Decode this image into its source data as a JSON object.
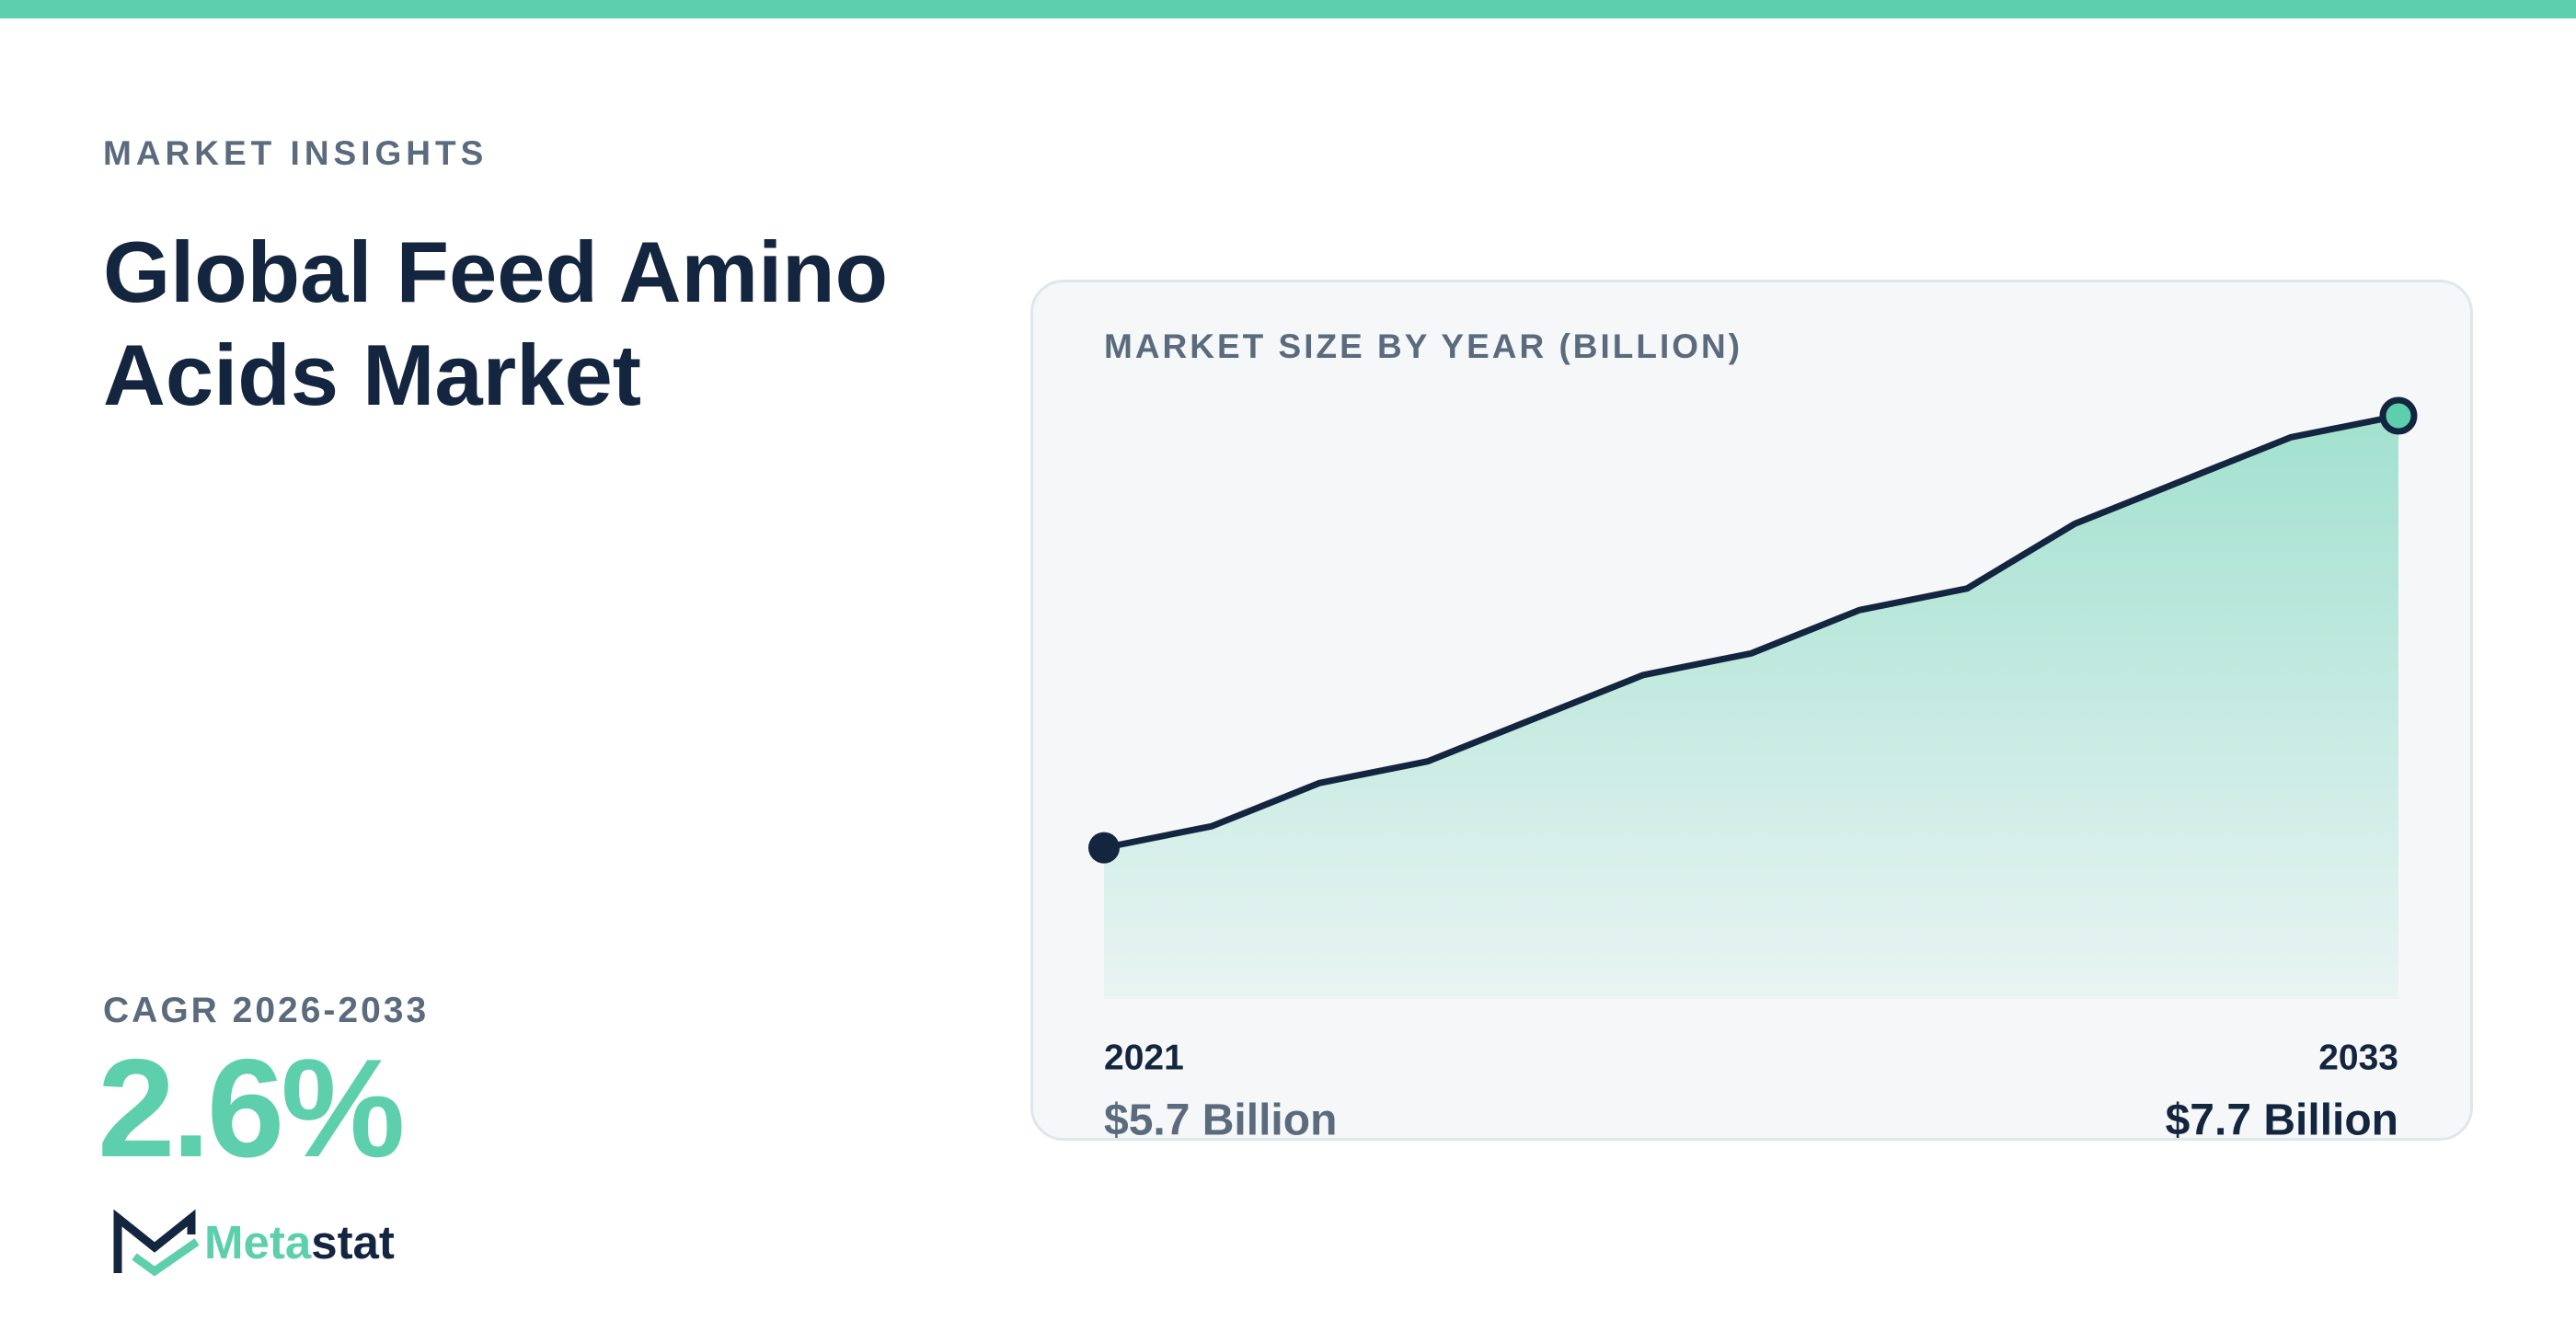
{
  "header": {
    "eyebrow": "MARKET INSIGHTS",
    "title": "Global Feed Amino Acids Market"
  },
  "cagr": {
    "label": "CAGR 2026-2033",
    "value": "2.6%"
  },
  "brand": {
    "name_accent": "Meta",
    "name_rest": "stat"
  },
  "chart_data": {
    "type": "area",
    "title": "MARKET SIZE BY YEAR (BILLION)",
    "x": [
      2021,
      2022,
      2023,
      2024,
      2025,
      2026,
      2027,
      2028,
      2029,
      2030,
      2031,
      2032,
      2033
    ],
    "values": [
      5.7,
      5.8,
      6.0,
      6.1,
      6.3,
      6.5,
      6.6,
      6.8,
      6.9,
      7.2,
      7.4,
      7.6,
      7.7
    ],
    "value_labels": [
      "$5.7 Billion",
      null,
      null,
      null,
      null,
      null,
      null,
      null,
      null,
      null,
      null,
      null,
      "$7.7 Billion"
    ],
    "xlim": [
      2021,
      2033
    ],
    "xticks": [
      2021,
      2033
    ],
    "ylim": [
      5.0,
      7.7
    ],
    "color": "#13253f",
    "fill_color": "#5ecfac",
    "end_marker_color": "#5ecfac"
  }
}
